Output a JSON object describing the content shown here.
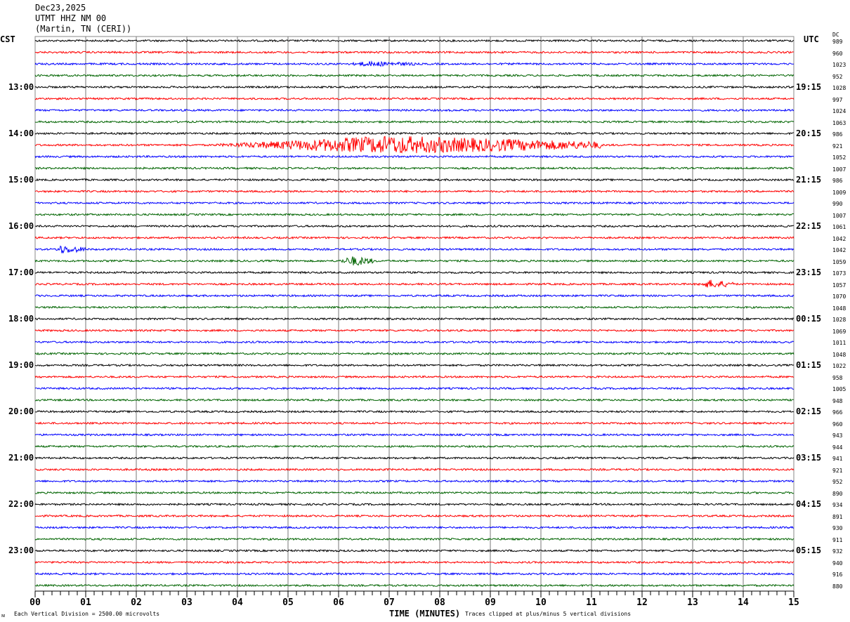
{
  "header": {
    "date": "Dec23,2025",
    "station": "UTMT HHZ NM 00",
    "location": "(Martin, TN (CERI))"
  },
  "left_zone": "CST",
  "right_zone": "UTC",
  "dc_label": "DC",
  "footer": {
    "scale_note": "Each Vertical Division = 2500.00 microvolts",
    "xlabel": "TIME (MINUTES)",
    "clip_note": "Traces clipped at plus/minus 5 vertical divisions"
  },
  "chart_data": {
    "type": "line",
    "title": "",
    "xlabel": "TIME (MINUTES)",
    "xlim": [
      0,
      15
    ],
    "x_ticks": [
      "00",
      "01",
      "02",
      "03",
      "04",
      "05",
      "06",
      "07",
      "08",
      "09",
      "10",
      "11",
      "12",
      "13",
      "14",
      "15"
    ],
    "trace_colors": [
      "#000000",
      "#ff0000",
      "#0000ff",
      "#006400"
    ],
    "rows_per_hour": 4,
    "left_hour_labels": [
      "13:00",
      "14:00",
      "15:00",
      "16:00",
      "17:00",
      "18:00",
      "19:00",
      "20:00",
      "21:00",
      "22:00",
      "23:00"
    ],
    "right_hour_labels": [
      "19:15",
      "20:15",
      "21:15",
      "22:15",
      "23:15",
      "00:15",
      "01:15",
      "02:15",
      "03:15",
      "04:15",
      "05:15"
    ],
    "dc_values": [
      "989",
      "960",
      "1023",
      "952",
      "1028",
      "997",
      "1024",
      "1063",
      "986",
      "921",
      "1052",
      "1007",
      "986",
      "1009",
      "990",
      "1007",
      "1061",
      "1042",
      "1042",
      "1059",
      "1073",
      "1057",
      "1070",
      "1048",
      "1028",
      "1069",
      "1011",
      "1048",
      "1022",
      "958",
      "1005",
      "948",
      "966",
      "960",
      "943",
      "944",
      "941",
      "921",
      "952",
      "890",
      "934",
      "891",
      "930",
      "911",
      "932",
      "940",
      "916",
      "880"
    ],
    "events": [
      {
        "row": 9,
        "start_min": 3.5,
        "end_min": 11.2,
        "peak_min": 7.0,
        "amplitude_div": 1.2
      },
      {
        "row": 18,
        "start_min": 0.4,
        "end_min": 1.0,
        "peak_min": 0.5,
        "amplitude_div": 0.5
      },
      {
        "row": 19,
        "start_min": 6.0,
        "end_min": 6.7,
        "peak_min": 6.3,
        "amplitude_div": 0.6
      },
      {
        "row": 21,
        "start_min": 13.1,
        "end_min": 13.8,
        "peak_min": 13.35,
        "amplitude_div": 0.5
      },
      {
        "row": 2,
        "start_min": 6.2,
        "end_min": 7.5,
        "peak_min": 6.6,
        "amplitude_div": 0.25
      }
    ]
  }
}
